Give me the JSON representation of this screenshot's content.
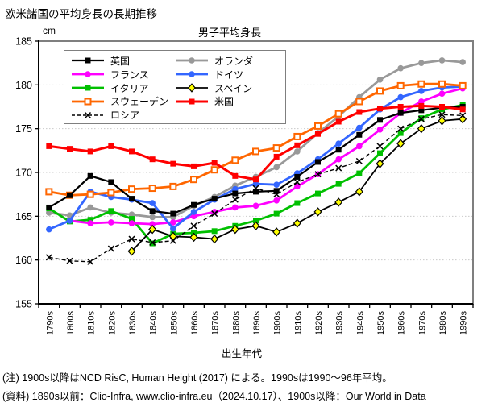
{
  "page_title": "欧米諸国の平均身長の長期推移",
  "chart": {
    "title": "男子平均身長",
    "y_unit": "cm",
    "x_title": "出生年代"
  },
  "notes": {
    "line1": "(注) 1900s以降はNCD RisC, Human Height (2017) による。1990sは1990～96年平均。",
    "line2": "(資料) 1890s以前：Clio-Infra, www.clio-infra.eu（2024.10.17）、1900s以降：Our World in Data"
  },
  "legend": {
    "columns": [
      [
        "英国",
        "フランス",
        "イタリア",
        "スウェーデン",
        "ロシア"
      ],
      [
        "オランダ",
        "ドイツ",
        "スペイン",
        "米国"
      ]
    ]
  },
  "chart_data": {
    "type": "line",
    "title": "男子平均身長",
    "xlabel": "出生年代",
    "ylabel": "cm",
    "ylim": [
      155,
      185
    ],
    "ytick_step": 5,
    "grid": "horizontal-dotted",
    "legend_position": "top-left-inside",
    "categories": [
      "1790s",
      "1800s",
      "1810s",
      "1820s",
      "1830s",
      "1840s",
      "1850s",
      "1860s",
      "1870s",
      "1880s",
      "1890s",
      "1900s",
      "1910s",
      "1920s",
      "1930s",
      "1940s",
      "1950s",
      "1960s",
      "1970s",
      "1980s",
      "1990s"
    ],
    "series": [
      {
        "name": "オランダ",
        "name_en": "Netherlands",
        "color": "#999999",
        "marker": "circle",
        "line": "solid",
        "width": 2.8,
        "values": [
          165.4,
          165.1,
          166.0,
          165.4,
          165.2,
          164.9,
          164.9,
          166.2,
          167.2,
          168.5,
          169.5,
          170.6,
          172.4,
          174.5,
          176.4,
          178.6,
          180.6,
          181.9,
          182.5,
          182.8,
          182.6
        ]
      },
      {
        "name": "イタリア",
        "name_en": "Italy",
        "color": "#00c000",
        "marker": "square",
        "line": "solid",
        "width": 2.8,
        "values": [
          165.9,
          164.4,
          164.6,
          165.6,
          164.7,
          161.9,
          163.0,
          163.1,
          163.3,
          163.9,
          164.5,
          165.3,
          166.5,
          167.6,
          168.7,
          169.9,
          172.2,
          174.5,
          176.2,
          177.2,
          177.7
        ]
      },
      {
        "name": "フランス",
        "name_en": "France",
        "color": "#ff00ff",
        "marker": "circle",
        "line": "solid",
        "width": 2.8,
        "values": [
          null,
          164.5,
          164.2,
          164.3,
          164.2,
          164.1,
          164.3,
          165.0,
          165.5,
          166.0,
          166.2,
          166.8,
          168.4,
          169.8,
          171.5,
          173.0,
          174.9,
          176.8,
          178.1,
          179.0,
          179.6
        ]
      },
      {
        "name": "ドイツ",
        "name_en": "Germany",
        "color": "#3366ff",
        "marker": "circle",
        "line": "solid",
        "width": 2.8,
        "values": [
          163.5,
          164.5,
          167.8,
          167.2,
          166.9,
          166.5,
          163.6,
          165.5,
          166.9,
          168.1,
          168.7,
          168.6,
          169.9,
          171.5,
          173.3,
          175.1,
          177.2,
          178.6,
          179.3,
          179.7,
          179.8
        ]
      },
      {
        "name": "スウェーデン",
        "name_en": "Sweden",
        "color": "#ff6600",
        "marker": "open-square",
        "line": "solid",
        "width": 2.8,
        "values": [
          167.8,
          167.4,
          167.5,
          167.7,
          168.1,
          168.2,
          168.4,
          169.2,
          170.3,
          171.4,
          172.4,
          172.8,
          174.1,
          175.3,
          176.7,
          178.1,
          179.3,
          179.9,
          180.1,
          180.1,
          179.9
        ]
      },
      {
        "name": "英国",
        "name_en": "United Kingdom",
        "color": "#000000",
        "marker": "square",
        "line": "solid",
        "width": 2.2,
        "values": [
          166.0,
          167.4,
          169.6,
          168.9,
          167.0,
          165.6,
          165.3,
          166.3,
          167.0,
          167.6,
          167.8,
          167.9,
          169.5,
          171.2,
          172.6,
          174.3,
          176.0,
          176.8,
          177.1,
          177.4,
          177.5
        ]
      },
      {
        "name": "米国",
        "name_en": "United States",
        "color": "#ff0000",
        "marker": "square",
        "line": "solid",
        "width": 3,
        "values": [
          173.0,
          172.7,
          172.4,
          173.0,
          172.4,
          171.5,
          171.0,
          170.7,
          171.1,
          169.6,
          169.2,
          171.8,
          173.1,
          174.4,
          175.8,
          176.9,
          177.3,
          177.5,
          177.6,
          177.5,
          177.2
        ]
      },
      {
        "name": "スペイン",
        "name_en": "Spain",
        "color": "#000000",
        "marker": "diamond-yellow",
        "marker_fill": "#ffff00",
        "line": "solid",
        "width": 1.8,
        "values": [
          null,
          null,
          null,
          null,
          161.0,
          163.5,
          162.7,
          162.6,
          162.4,
          163.5,
          163.9,
          163.2,
          164.2,
          165.5,
          166.6,
          167.8,
          171.0,
          173.3,
          175.0,
          175.9,
          176.1
        ]
      },
      {
        "name": "ロシア",
        "name_en": "Russia",
        "color": "#000000",
        "marker": "x",
        "line": "dashed",
        "width": 1.4,
        "values": [
          160.3,
          159.9,
          159.8,
          161.3,
          162.4,
          162.0,
          162.2,
          163.9,
          165.3,
          166.9,
          168.2,
          167.5,
          168.9,
          169.8,
          170.5,
          171.3,
          173.0,
          175.0,
          176.1,
          176.6,
          176.5
        ]
      }
    ]
  },
  "style": {
    "plot_border_color": "#7f7f7f",
    "axis_color": "#000000",
    "grid_color": "#c9c9c9",
    "background": "#ffffff"
  }
}
